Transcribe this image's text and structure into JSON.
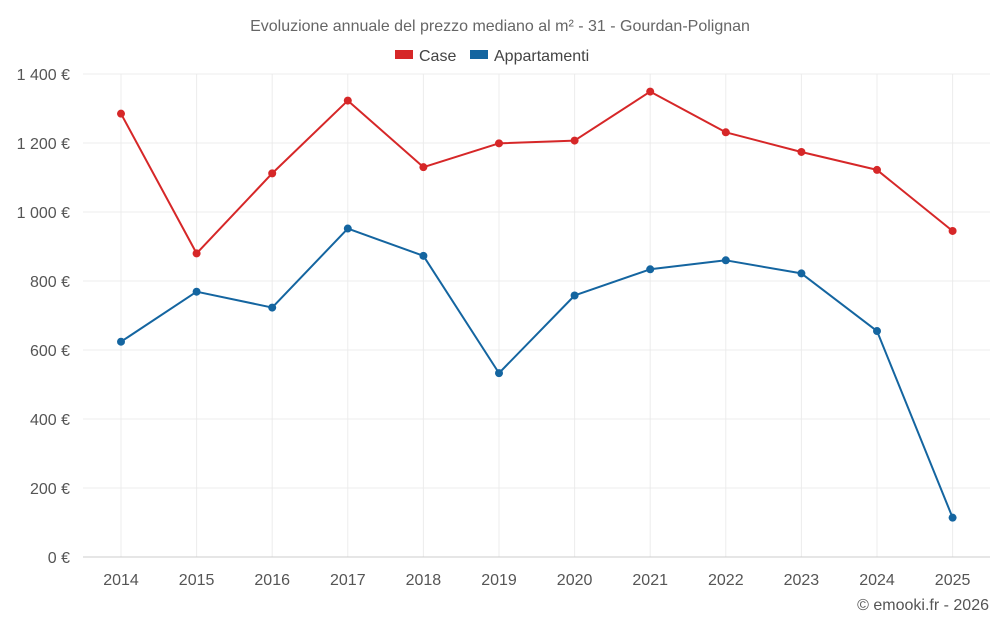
{
  "chart_data": {
    "type": "line",
    "title": "Evoluzione annuale del prezzo mediano al m² - 31 - Gourdan-Polignan",
    "categories": [
      "2014",
      "2015",
      "2016",
      "2017",
      "2018",
      "2019",
      "2020",
      "2021",
      "2022",
      "2023",
      "2024",
      "2025"
    ],
    "series": [
      {
        "name": "Case",
        "color": "#d62728",
        "values": [
          1285,
          880,
          1112,
          1323,
          1130,
          1199,
          1207,
          1349,
          1231,
          1174,
          1122,
          945
        ]
      },
      {
        "name": "Appartamenti",
        "color": "#1465a0",
        "values": [
          624,
          769,
          723,
          952,
          873,
          533,
          758,
          834,
          860,
          822,
          655,
          114
        ]
      }
    ],
    "y_ticks": [
      0,
      200,
      400,
      600,
      800,
      1000,
      1200,
      1400
    ],
    "y_tick_labels": [
      "0 €",
      "200 €",
      "400 €",
      "600 €",
      "800 €",
      "1 000 €",
      "1 200 €",
      "1 400 €"
    ],
    "ylim": [
      0,
      1400
    ],
    "xlabel": "",
    "ylabel": "",
    "grid": true,
    "legend_position": "top-center"
  },
  "credit": "© emooki.fr - 2026"
}
